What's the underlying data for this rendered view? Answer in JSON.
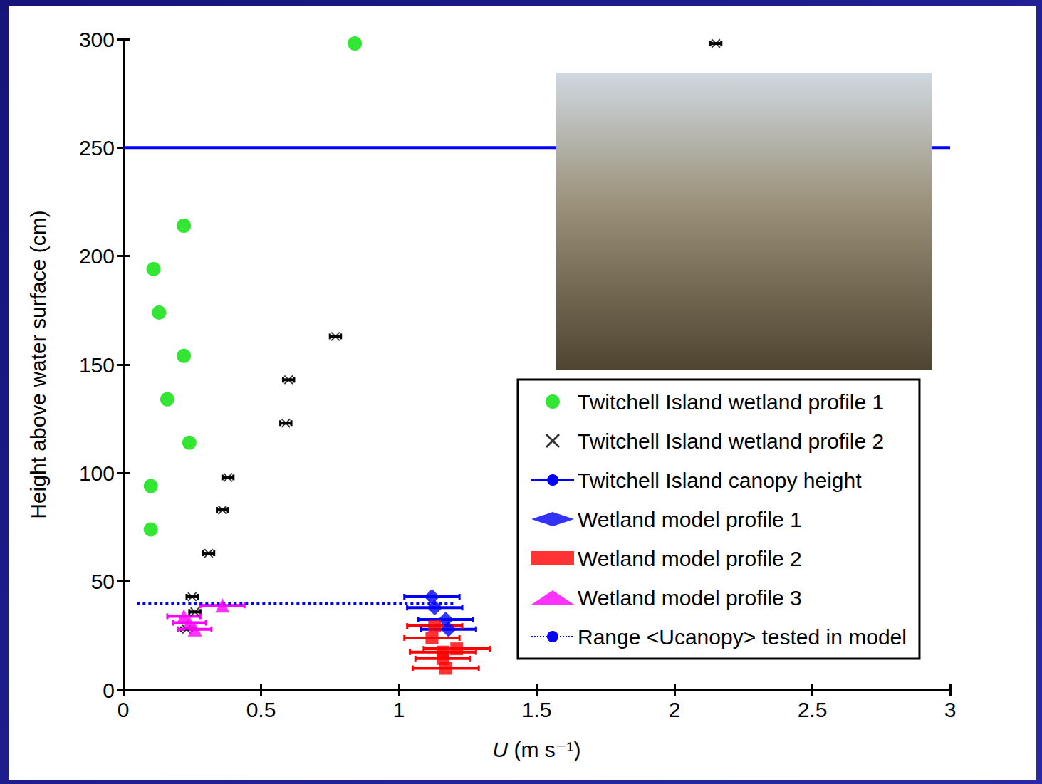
{
  "chart_data": {
    "type": "scatter",
    "xlabel": "U (m s⁻¹)",
    "ylabel": "Height above water surface (cm)",
    "xlim": [
      0,
      3
    ],
    "ylim": [
      0,
      300
    ],
    "xticks": [
      0,
      0.5,
      1,
      1.5,
      2,
      2.5,
      3
    ],
    "yticks": [
      0,
      50,
      100,
      150,
      200,
      250,
      300
    ],
    "grid": false,
    "legend": "lower right",
    "series": [
      {
        "name": "Twitchell Island wetland profile 1",
        "type": "scatter",
        "marker": "circle",
        "color": "#00e000",
        "x": [
          0.22,
          0.11,
          0.13,
          0.22,
          0.16,
          0.24,
          0.1,
          0.1,
          0.84
        ],
        "y": [
          214,
          194,
          174,
          154,
          134,
          114,
          94,
          74,
          298
        ]
      },
      {
        "name": "Twitchell Island wetland profile 2",
        "type": "scatter",
        "marker": "x",
        "color": "#000000",
        "x": [
          0.25,
          0.26,
          0.23,
          0.31,
          0.36,
          0.38,
          0.59,
          0.6,
          0.77,
          2.15
        ],
        "y": [
          43,
          36,
          28,
          63,
          83,
          98,
          123,
          143,
          163,
          298
        ],
        "xerr": [
          0.02,
          0.02,
          0.02,
          0.02,
          0.02,
          0.02,
          0.02,
          0.02,
          0.02,
          0.02
        ]
      },
      {
        "name": "Twitchell Island canopy height",
        "type": "line",
        "line_style": "solid",
        "color": "#0000ff",
        "x": [
          0,
          3
        ],
        "y": [
          250,
          250
        ]
      },
      {
        "name": "Wetland model profile 1",
        "type": "scatter",
        "marker": "diamond",
        "color": "#0000ff",
        "x": [
          1.12,
          1.13,
          1.17,
          1.18
        ],
        "y": [
          43,
          38,
          32.5,
          28
        ],
        "xerr": [
          0.1,
          0.1,
          0.1,
          0.1
        ]
      },
      {
        "name": "Wetland model profile 2",
        "type": "scatter",
        "marker": "square",
        "color": "#ff0000",
        "x": [
          1.13,
          1.12,
          1.16,
          1.21,
          1.16,
          1.17
        ],
        "y": [
          29.5,
          24,
          17.5,
          19,
          14.5,
          10
        ],
        "xerr": [
          0.1,
          0.1,
          0.12,
          0.12,
          0.1,
          0.12
        ]
      },
      {
        "name": "Wetland model profile 3",
        "type": "scatter",
        "marker": "triangle",
        "color": "#ff00ff",
        "x": [
          0.36,
          0.22,
          0.24,
          0.26
        ],
        "y": [
          39,
          34,
          31,
          28
        ],
        "xerr": [
          0.08,
          0.06,
          0.06,
          0.06
        ]
      },
      {
        "name": "Range <Ucanopy> tested in model",
        "type": "line",
        "line_style": "dotted",
        "color": "#0000ff",
        "x": [
          0.05,
          1.2
        ],
        "y": [
          40,
          40
        ]
      }
    ]
  }
}
